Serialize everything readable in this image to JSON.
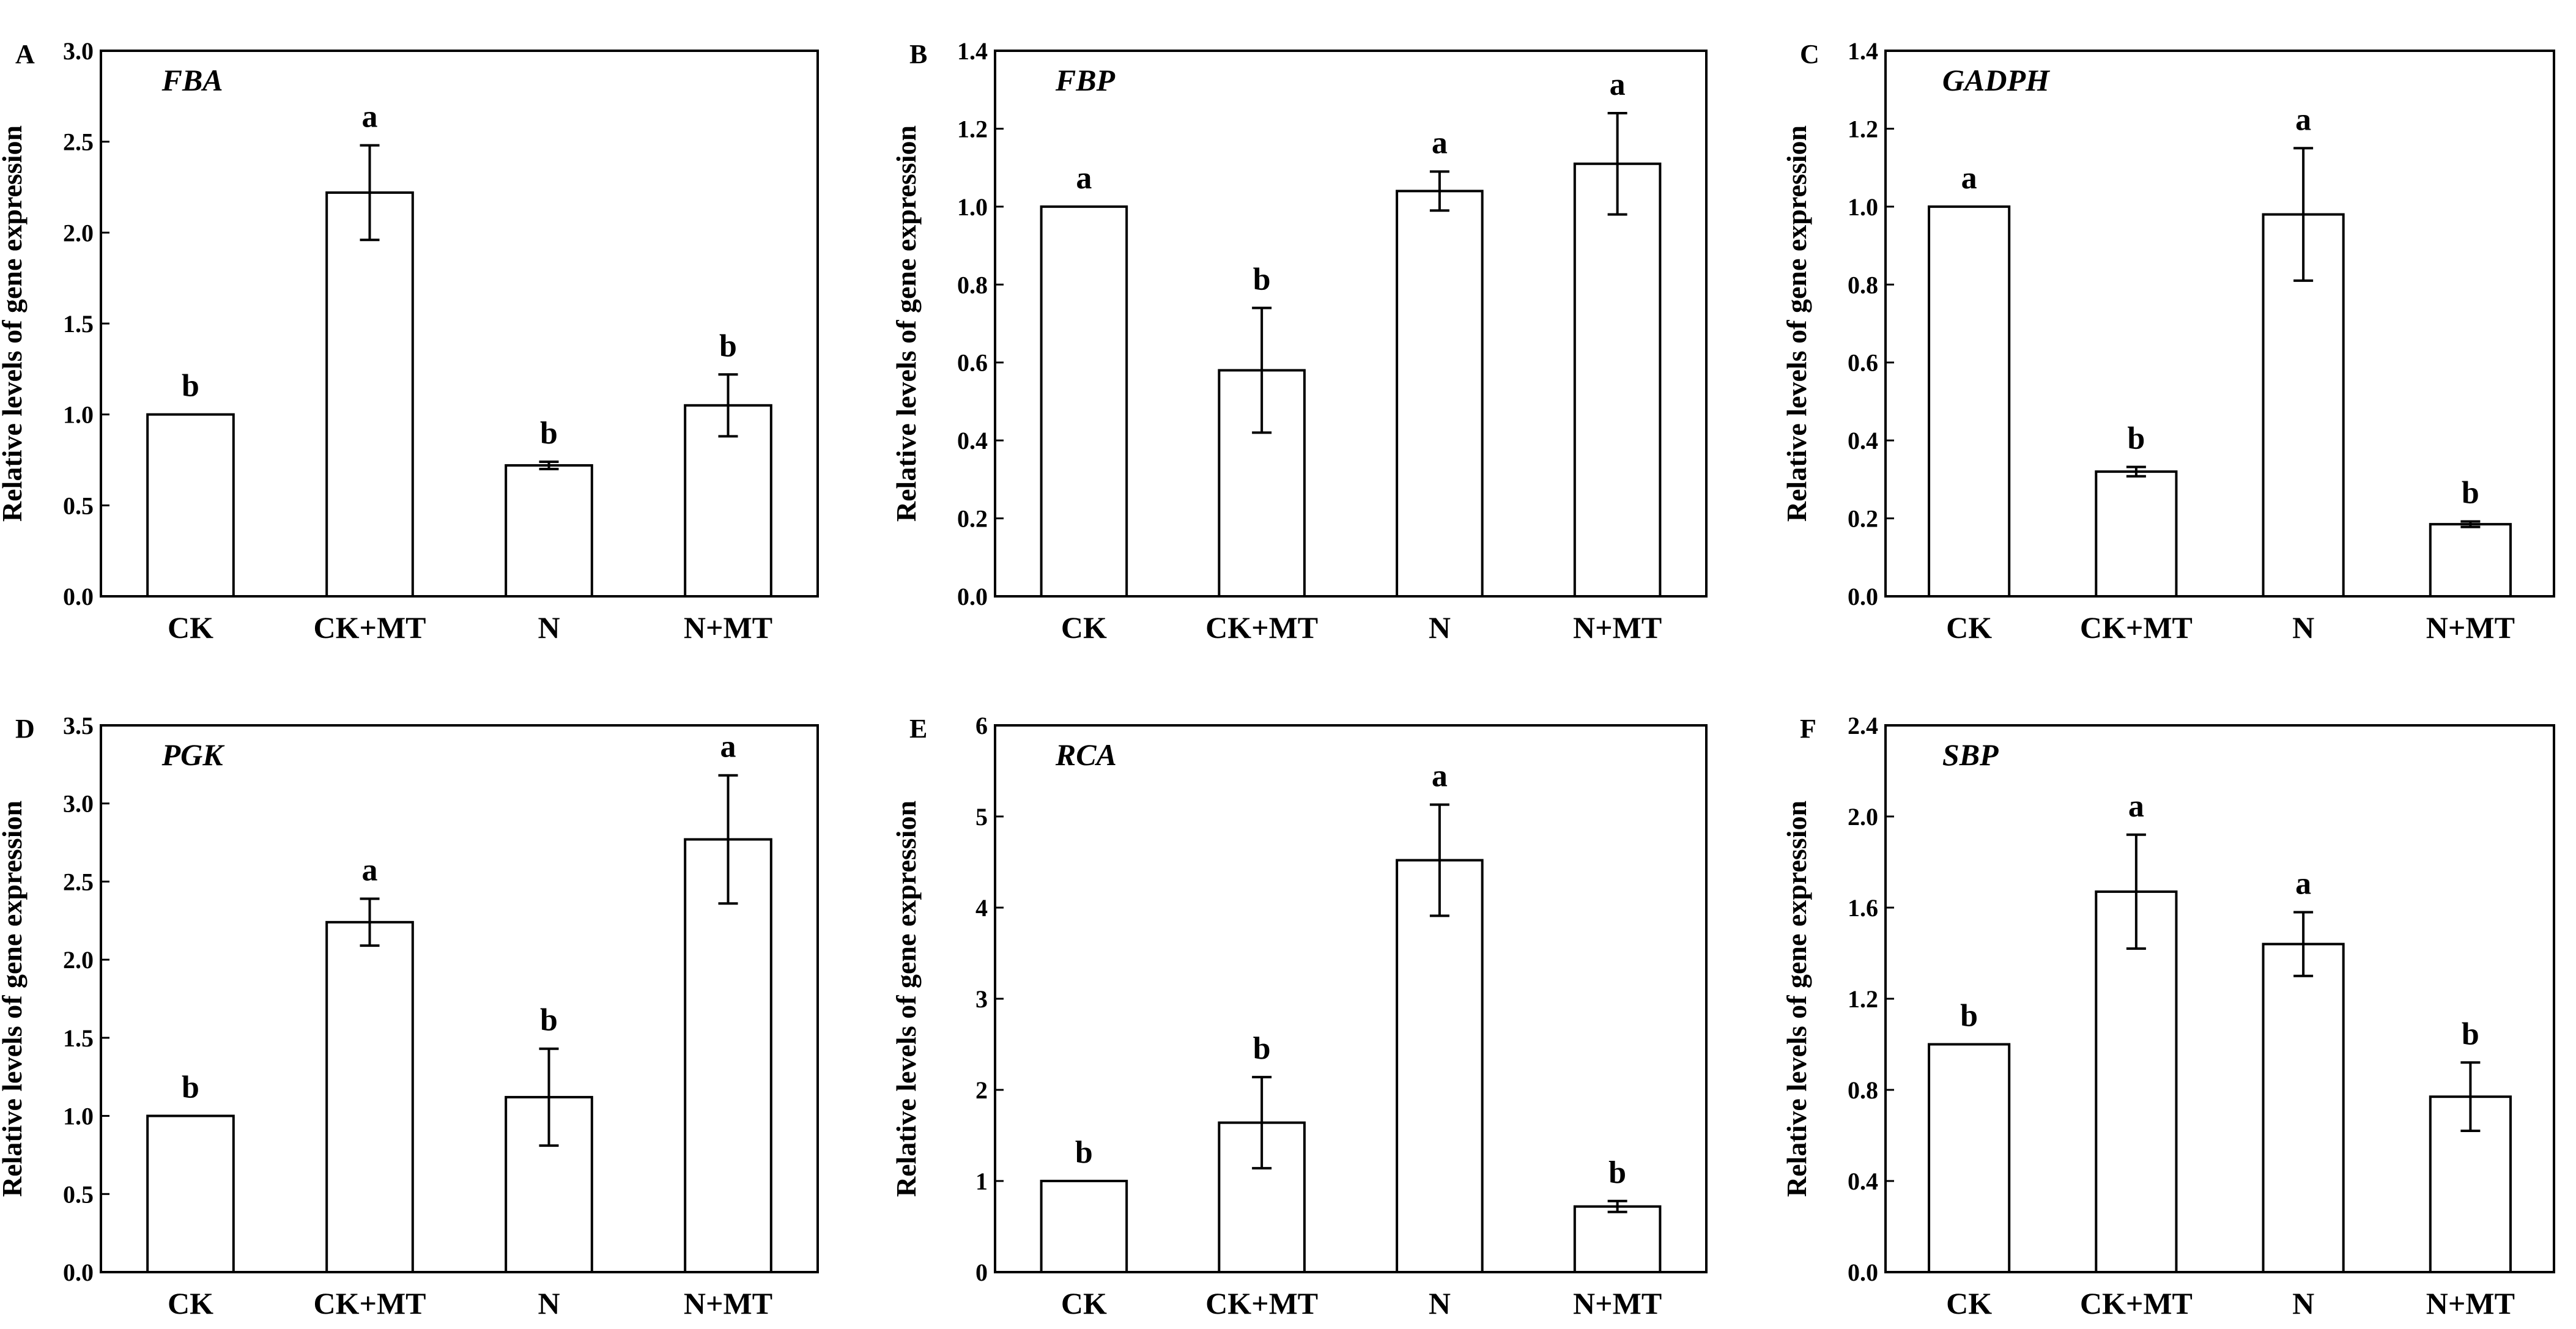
{
  "chart_data": [
    {
      "type": "bar",
      "panel": "A",
      "title": "FBA",
      "ylabel": "Relative levels of gene expression",
      "xlabel": "",
      "categories": [
        "CK",
        "CK+MT",
        "N",
        "N+MT"
      ],
      "values": [
        1.0,
        2.22,
        0.72,
        1.05
      ],
      "errors": [
        0,
        0.26,
        0.02,
        0.17
      ],
      "significance": [
        "b",
        "a",
        "b",
        "b"
      ],
      "ylim": [
        0,
        3.0
      ],
      "yticks": [
        0.0,
        0.5,
        1.0,
        1.5,
        2.0,
        2.5,
        3.0
      ],
      "ytick_labels": [
        "0.0",
        "0.5",
        "1.0",
        "1.5",
        "2.0",
        "2.5",
        "3.0"
      ]
    },
    {
      "type": "bar",
      "panel": "B",
      "title": "FBP",
      "ylabel": "Relative levels of gene expression",
      "xlabel": "",
      "categories": [
        "CK",
        "CK+MT",
        "N",
        "N+MT"
      ],
      "values": [
        1.0,
        0.58,
        1.04,
        1.11
      ],
      "errors": [
        0,
        0.16,
        0.05,
        0.13
      ],
      "significance": [
        "a",
        "b",
        "a",
        "a"
      ],
      "ylim": [
        0,
        1.4
      ],
      "yticks": [
        0.0,
        0.2,
        0.4,
        0.6,
        0.8,
        1.0,
        1.2,
        1.4
      ],
      "ytick_labels": [
        "0.0",
        "0.2",
        "0.4",
        "0.6",
        "0.8",
        "1.0",
        "1.2",
        "1.4"
      ]
    },
    {
      "type": "bar",
      "panel": "C",
      "title": "GADPH",
      "ylabel": "Relative levels of gene expression",
      "xlabel": "",
      "categories": [
        "CK",
        "CK+MT",
        "N",
        "N+MT"
      ],
      "values": [
        1.0,
        0.32,
        0.98,
        0.185
      ],
      "errors": [
        0,
        0.012,
        0.17,
        0.007
      ],
      "significance": [
        "a",
        "b",
        "a",
        "b"
      ],
      "ylim": [
        0,
        1.4
      ],
      "yticks": [
        0.0,
        0.2,
        0.4,
        0.6,
        0.8,
        1.0,
        1.2,
        1.4
      ],
      "ytick_labels": [
        "0.0",
        "0.2",
        "0.4",
        "0.6",
        "0.8",
        "1.0",
        "1.2",
        "1.4"
      ]
    },
    {
      "type": "bar",
      "panel": "D",
      "title": "PGK",
      "ylabel": "Relative levels of gene expression",
      "xlabel": "",
      "categories": [
        "CK",
        "CK+MT",
        "N",
        "N+MT"
      ],
      "values": [
        1.0,
        2.24,
        1.12,
        2.77
      ],
      "errors": [
        0,
        0.15,
        0.31,
        0.41
      ],
      "significance": [
        "b",
        "a",
        "b",
        "a"
      ],
      "ylim": [
        0,
        3.5
      ],
      "yticks": [
        0.0,
        0.5,
        1.0,
        1.5,
        2.0,
        2.5,
        3.0,
        3.5
      ],
      "ytick_labels": [
        "0.0",
        "0.5",
        "1.0",
        "1.5",
        "2.0",
        "2.5",
        "3.0",
        "3.5"
      ]
    },
    {
      "type": "bar",
      "panel": "E",
      "title": "RCA",
      "ylabel": "Relative levels of gene expression",
      "xlabel": "",
      "categories": [
        "CK",
        "CK+MT",
        "N",
        "N+MT"
      ],
      "values": [
        1.0,
        1.64,
        4.52,
        0.72
      ],
      "errors": [
        0,
        0.5,
        0.61,
        0.06
      ],
      "significance": [
        "b",
        "b",
        "a",
        "b"
      ],
      "ylim": [
        0,
        6
      ],
      "yticks": [
        0,
        1,
        2,
        3,
        4,
        5,
        6
      ],
      "ytick_labels": [
        "0",
        "1",
        "2",
        "3",
        "4",
        "5",
        "6"
      ]
    },
    {
      "type": "bar",
      "panel": "F",
      "title": "SBP",
      "ylabel": "Relative levels of gene expression",
      "xlabel": "",
      "categories": [
        "CK",
        "CK+MT",
        "N",
        "N+MT"
      ],
      "values": [
        1.0,
        1.67,
        1.44,
        0.77
      ],
      "errors": [
        0,
        0.25,
        0.14,
        0.15
      ],
      "significance": [
        "b",
        "a",
        "a",
        "b"
      ],
      "ylim": [
        0,
        2.4
      ],
      "yticks": [
        0.0,
        0.4,
        0.8,
        1.2,
        1.6,
        2.0,
        2.4
      ],
      "ytick_labels": [
        "0.0",
        "0.4",
        "0.8",
        "1.2",
        "1.6",
        "2.0",
        "2.4"
      ]
    }
  ]
}
